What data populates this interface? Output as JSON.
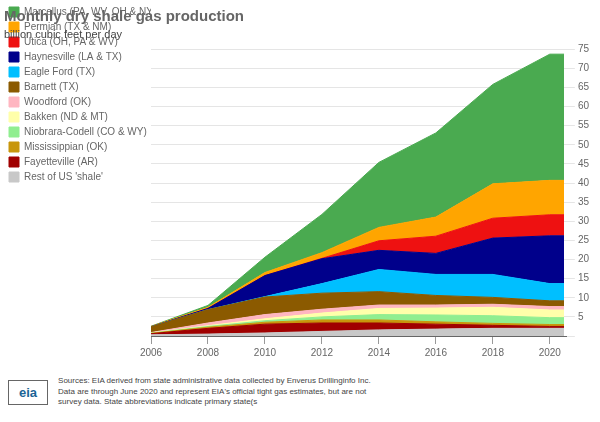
{
  "chart_data": {
    "type": "stacked_area",
    "title": "Monthly dry shale gas production",
    "subtitle": "billion cubic feet per day",
    "annotations": [
      "Sources: EIA derived from state administrative data collected by Enverus Drillinginfo Inc.\nData are through June 2020  and represent EIA's  official tight gas estimates, but are not\nsurvey data. State abbreviations indicate primary state(s",
      "eia"
    ],
    "x": [
      2006,
      2008,
      2010,
      2012,
      2014,
      2016,
      2018,
      2020,
      2020.5
    ],
    "xlim": [
      2006,
      2020.6
    ],
    "xticks": [
      2006,
      2008,
      2010,
      2012,
      2014,
      2016,
      2018,
      2020
    ],
    "ylim": [
      0,
      75
    ],
    "yticks": [
      {
        "value": 0,
        "label": null
      },
      5,
      10,
      15,
      20,
      25,
      30,
      35,
      40,
      45,
      50,
      55,
      60,
      65,
      70,
      75
    ],
    "stacked": true,
    "grid": true,
    "legend": "upper left",
    "series": [
      {
        "name": "Rest of US 'shale'",
        "color": "#c8c8c8",
        "values": [
          0.3,
          0.5,
          0.8,
          1.2,
          1.6,
          1.8,
          2.0,
          2.0,
          2.0
        ]
      },
      {
        "name": "Fayetteville (AR)",
        "color": "#a00000",
        "values": [
          0.3,
          1.5,
          2.3,
          2.2,
          1.8,
          1.3,
          0.8,
          0.5,
          0.5
        ]
      },
      {
        "name": "Mississippian (OK)",
        "color": "#c8960c",
        "values": [
          0.1,
          0.3,
          0.5,
          0.8,
          0.8,
          0.6,
          0.5,
          0.5,
          0.5
        ]
      },
      {
        "name": "Niobrara-Codell (CO & WY)",
        "color": "#90ee90",
        "values": [
          0.05,
          0.2,
          0.4,
          0.8,
          1.4,
          1.8,
          2.0,
          1.8,
          1.8
        ]
      },
      {
        "name": "Bakken (ND & MT)",
        "color": "#ffffaa",
        "values": [
          0.05,
          0.2,
          0.5,
          1.0,
          1.6,
          1.8,
          2.2,
          2.0,
          2.0
        ]
      },
      {
        "name": "Woodford (OK)",
        "color": "#ffb6c1",
        "values": [
          0.1,
          0.7,
          1.1,
          1.0,
          0.9,
          0.8,
          0.8,
          0.9,
          0.9
        ]
      },
      {
        "name": "Barnett (TX)",
        "color": "#8b5a00",
        "values": [
          1.5,
          3.5,
          4.6,
          4.2,
          3.5,
          2.5,
          1.8,
          1.5,
          1.5
        ]
      },
      {
        "name": "Eagle Ford (TX)",
        "color": "#00bfff",
        "values": [
          0.0,
          0.0,
          0.1,
          2.5,
          5.8,
          5.5,
          6.0,
          4.5,
          4.5
        ]
      },
      {
        "name": "Haynesville (LA & TX)",
        "color": "#00008b",
        "values": [
          0.0,
          0.3,
          5.5,
          6.5,
          5.0,
          5.5,
          9.5,
          12.5,
          12.5
        ]
      },
      {
        "name": "Utica (OH, PA & WV)",
        "color": "#ee1111",
        "values": [
          0.0,
          0.0,
          0.0,
          0.1,
          2.5,
          4.5,
          5.2,
          5.5,
          5.5
        ]
      },
      {
        "name": "Permian (TX & NM)",
        "color": "#ffa500",
        "values": [
          0.1,
          0.3,
          0.8,
          1.5,
          3.5,
          5.0,
          9.0,
          9.0,
          9.0
        ]
      },
      {
        "name": "Marcellus (PA, WV, OH & NY)",
        "color": "#4aaa50",
        "values": [
          0.05,
          0.5,
          4.0,
          10.0,
          17.0,
          22.0,
          26.0,
          33.0,
          33.0
        ]
      }
    ]
  }
}
